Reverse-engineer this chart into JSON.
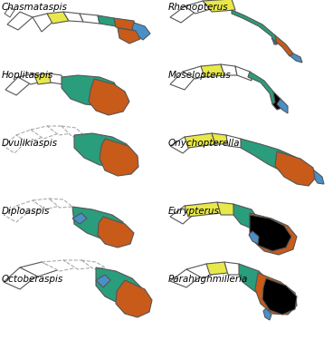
{
  "labels_left": [
    "Chasmataspis",
    "Hoplitaspis",
    "Dvulikiaspis",
    "Diploaspis",
    "Octoberaspis"
  ],
  "labels_right": [
    "Rhenopterus",
    "Moselopterus",
    "Onychopterella",
    "Eurypterus",
    "Parahughmilleria"
  ],
  "colors": {
    "yellow": "#E8E84A",
    "teal": "#2A9D7C",
    "orange": "#C85A1A",
    "blue": "#4A90C8",
    "black": "#000000",
    "outline": "#555555",
    "white": "#FFFFFF",
    "dashed": "#AAAAAA"
  },
  "label_fontsize": 7.5,
  "label_style": "italic"
}
